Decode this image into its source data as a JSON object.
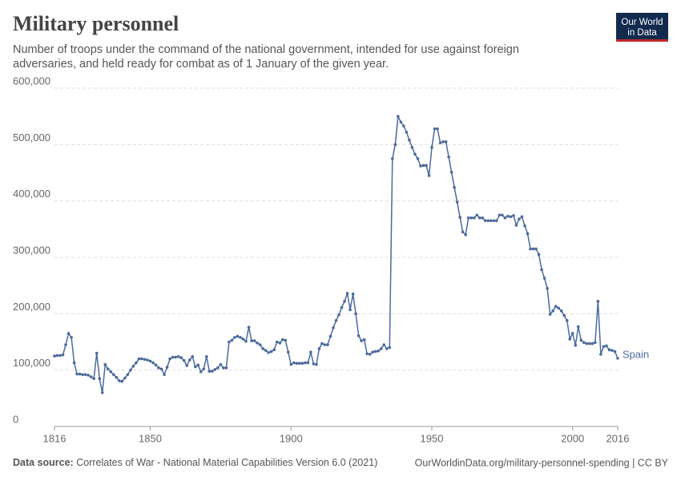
{
  "chart_data": {
    "type": "line",
    "title": "Military personnel",
    "subtitle": [
      "Number of troops under the command of the national government, intended for use against foreign",
      "adversaries, and held ready for combat as of 1 January of the given year."
    ],
    "logo": [
      "Our World",
      "in Data"
    ],
    "source_label": "Data source:",
    "source": "Correlates of War - National Material Capabilities Version 6.0 (2021)",
    "url": "OurWorldinData.org/military-personnel-spending | CC BY",
    "xlim": [
      1816,
      2016
    ],
    "xticks": [
      1816,
      1850,
      1900,
      1950,
      2000,
      2016
    ],
    "ylim": [
      0,
      600000
    ],
    "yticks": [
      0,
      {
        "value": 100000,
        "label": "100,000"
      },
      {
        "value": 200000,
        "label": "200,000"
      },
      {
        "value": 300000,
        "label": "300,000"
      },
      {
        "value": 400000,
        "label": "400,000"
      },
      {
        "value": 500000,
        "label": "500,000"
      },
      {
        "value": 600000,
        "label": "600,000"
      }
    ],
    "grid": true,
    "x": [
      1816,
      1817,
      1818,
      1819,
      1820,
      1821,
      1822,
      1823,
      1824,
      1825,
      1826,
      1827,
      1828,
      1829,
      1830,
      1831,
      1832,
      1833,
      1834,
      1835,
      1836,
      1837,
      1838,
      1839,
      1840,
      1841,
      1842,
      1843,
      1844,
      1845,
      1846,
      1847,
      1848,
      1849,
      1850,
      1851,
      1852,
      1853,
      1854,
      1855,
      1856,
      1857,
      1858,
      1859,
      1860,
      1861,
      1862,
      1863,
      1864,
      1865,
      1866,
      1867,
      1868,
      1869,
      1870,
      1871,
      1872,
      1873,
      1874,
      1875,
      1876,
      1877,
      1878,
      1879,
      1880,
      1881,
      1882,
      1883,
      1884,
      1885,
      1886,
      1887,
      1888,
      1889,
      1890,
      1891,
      1892,
      1893,
      1894,
      1895,
      1896,
      1897,
      1898,
      1899,
      1900,
      1901,
      1902,
      1903,
      1904,
      1905,
      1906,
      1907,
      1908,
      1909,
      1910,
      1911,
      1912,
      1913,
      1914,
      1915,
      1916,
      1917,
      1918,
      1919,
      1920,
      1921,
      1922,
      1923,
      1924,
      1925,
      1926,
      1927,
      1928,
      1929,
      1930,
      1931,
      1932,
      1933,
      1934,
      1935,
      1936,
      1937,
      1938,
      1939,
      1940,
      1941,
      1942,
      1943,
      1944,
      1945,
      1946,
      1947,
      1948,
      1949,
      1950,
      1951,
      1952,
      1953,
      1954,
      1955,
      1956,
      1957,
      1958,
      1959,
      1960,
      1961,
      1962,
      1963,
      1964,
      1965,
      1966,
      1967,
      1968,
      1969,
      1970,
      1971,
      1972,
      1973,
      1974,
      1975,
      1976,
      1977,
      1978,
      1979,
      1980,
      1981,
      1982,
      1983,
      1984,
      1985,
      1986,
      1987,
      1988,
      1989,
      1990,
      1991,
      1992,
      1993,
      1994,
      1995,
      1996,
      1997,
      1998,
      1999,
      2000,
      2001,
      2002,
      2003,
      2004,
      2005,
      2006,
      2007,
      2008,
      2009,
      2010,
      2011,
      2012,
      2013,
      2014,
      2015,
      2016
    ],
    "series": [
      {
        "name": "Spain",
        "color": "#4c6a9c",
        "values": [
          125000,
          126000,
          126000,
          127000,
          145000,
          165000,
          158000,
          113000,
          93000,
          93000,
          92000,
          92000,
          91000,
          88000,
          85000,
          130000,
          85000,
          60000,
          110000,
          102000,
          97000,
          92000,
          87000,
          81000,
          80000,
          86000,
          92000,
          100000,
          107000,
          113000,
          120000,
          120000,
          119000,
          118000,
          116000,
          113000,
          109000,
          104000,
          102000,
          92000,
          105000,
          120000,
          123000,
          123000,
          124000,
          122000,
          117000,
          108000,
          118000,
          124000,
          106000,
          109000,
          97000,
          102000,
          124000,
          98000,
          98000,
          101000,
          104000,
          110000,
          104000,
          104000,
          150000,
          153000,
          158000,
          160000,
          158000,
          155000,
          151000,
          176000,
          152000,
          152000,
          148000,
          145000,
          138000,
          135000,
          131000,
          133000,
          136000,
          150000,
          148000,
          154000,
          153000,
          132000,
          110000,
          113000,
          112000,
          112000,
          112000,
          113000,
          113000,
          132000,
          111000,
          110000,
          138000,
          147000,
          145000,
          145000,
          160000,
          175000,
          188000,
          198000,
          211000,
          222000,
          236000,
          207000,
          235000,
          200000,
          161000,
          152000,
          154000,
          129000,
          128000,
          132000,
          133000,
          134000,
          138000,
          145000,
          138000,
          140000,
          475000,
          500000,
          550000,
          540000,
          533000,
          522000,
          508000,
          495000,
          483000,
          475000,
          462000,
          463000,
          463000,
          445000,
          495000,
          528000,
          528000,
          503000,
          505000,
          505000,
          478000,
          451000,
          424000,
          398000,
          371000,
          345000,
          340000,
          370000,
          370000,
          370000,
          375000,
          370000,
          370000,
          365000,
          365000,
          365000,
          365000,
          365000,
          375000,
          375000,
          370000,
          373000,
          372000,
          374000,
          357000,
          368000,
          372000,
          356000,
          342000,
          315000,
          315000,
          315000,
          305000,
          278000,
          263000,
          245000,
          199000,
          205000,
          213000,
          210000,
          205000,
          197000,
          188000,
          155000,
          165000,
          144000,
          177000,
          153000,
          149000,
          147000,
          147000,
          147000,
          149000,
          222000,
          128000,
          142000,
          143000,
          136000,
          135000,
          133000,
          121000
        ]
      }
    ]
  }
}
